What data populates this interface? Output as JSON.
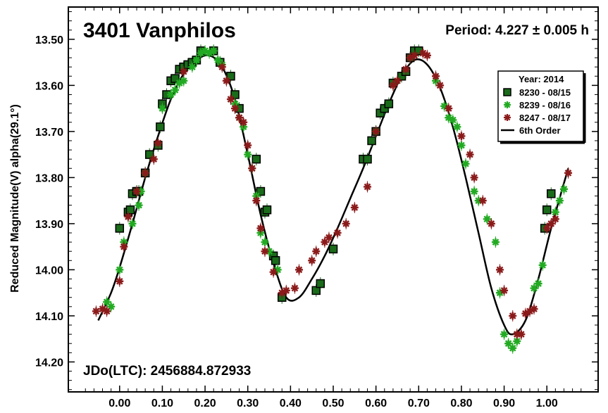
{
  "chart_data": {
    "type": "scatter",
    "title": "3401 Vanphilos",
    "period_text": "Period: 4.227 ± 0.005 h",
    "jdo_text": "JDo(LTC): 2456884.872933",
    "ylabel": "Reduced Magnitude(V) alpha(29.1°)",
    "xlabel": "",
    "xlim": [
      -0.12,
      1.12
    ],
    "ylim": [
      13.43,
      14.265
    ],
    "y_inverted": true,
    "x_ticks": [
      0.0,
      0.1,
      0.2,
      0.3,
      0.4,
      0.5,
      0.6,
      0.7,
      0.8,
      0.9,
      1.0
    ],
    "x_tick_labels": [
      "0.00",
      "0.10",
      "0.20",
      "0.30",
      "0.40",
      "0.50",
      "0.60",
      "0.70",
      "0.80",
      "0.90",
      "1.00"
    ],
    "y_ticks": [
      13.5,
      13.6,
      13.7,
      13.8,
      13.9,
      14.0,
      14.1,
      14.2
    ],
    "y_tick_labels": [
      "13.50",
      "13.60",
      "13.70",
      "13.80",
      "13.90",
      "14.00",
      "14.10",
      "14.20"
    ],
    "grid": false,
    "legend": {
      "placement": "top-right",
      "title": "Year: 2014",
      "entries": [
        {
          "label": "8230 - 08/15",
          "marker": "square",
          "color": "#1a6b1a"
        },
        {
          "label": "8239 - 08/16",
          "marker": "star",
          "color": "#22aa22"
        },
        {
          "label": "8247 - 08/17",
          "marker": "star",
          "color": "#8b1a1a"
        },
        {
          "label": "6th Order",
          "marker": "line",
          "color": "#000000"
        }
      ]
    },
    "series": [
      {
        "name": "8230 - 08/15",
        "marker": "square",
        "color": "#1a6b1a",
        "x": [
          0.0,
          0.02,
          0.025,
          0.03,
          0.04,
          0.045,
          0.06,
          0.07,
          0.09,
          0.095,
          0.1,
          0.11,
          0.12,
          0.13,
          0.14,
          0.15,
          0.16,
          0.17,
          0.18,
          0.19,
          0.22,
          0.235,
          0.26,
          0.27,
          0.28,
          0.32,
          0.33,
          0.34,
          0.345,
          0.36,
          0.365,
          0.38,
          0.46,
          0.47,
          0.5,
          0.57,
          0.58,
          0.59,
          0.6,
          0.61,
          0.62,
          0.63,
          0.64,
          0.66,
          0.67,
          0.68,
          0.69,
          0.7,
          0.995,
          1.0,
          1.01
        ],
        "y": [
          13.91,
          13.875,
          13.87,
          13.835,
          13.83,
          13.83,
          13.79,
          13.75,
          13.73,
          13.69,
          13.64,
          13.62,
          13.59,
          13.585,
          13.565,
          13.56,
          13.555,
          13.55,
          13.545,
          13.525,
          13.525,
          13.55,
          13.58,
          13.62,
          13.65,
          13.76,
          13.83,
          13.875,
          13.87,
          13.97,
          13.98,
          14.06,
          14.045,
          14.03,
          13.955,
          13.76,
          13.76,
          13.72,
          13.7,
          13.66,
          13.65,
          13.64,
          13.595,
          13.58,
          13.57,
          13.54,
          13.525,
          13.525,
          13.91,
          13.87,
          13.835
        ]
      },
      {
        "name": "8239 - 08/16",
        "marker": "star",
        "color": "#22aa22",
        "x": [
          -0.03,
          -0.02,
          0.0,
          0.01,
          0.03,
          0.045,
          0.05,
          0.1,
          0.12,
          0.13,
          0.14,
          0.15,
          0.17,
          0.18,
          0.19,
          0.2,
          0.21,
          0.22,
          0.23,
          0.24,
          0.27,
          0.28,
          0.29,
          0.3,
          0.31,
          0.32,
          0.33,
          0.34,
          0.35,
          0.37,
          0.74,
          0.76,
          0.77,
          0.78,
          0.79,
          0.8,
          0.81,
          0.83,
          0.84,
          0.86,
          0.88,
          0.89,
          0.9,
          0.91,
          0.92,
          0.93,
          0.97,
          0.98,
          0.99,
          1.02,
          1.03,
          1.04
        ],
        "y": [
          14.07,
          14.08,
          14.0,
          13.94,
          13.9,
          13.86,
          13.83,
          13.65,
          13.62,
          13.61,
          13.595,
          13.59,
          13.56,
          13.545,
          13.53,
          13.525,
          13.53,
          13.525,
          13.545,
          13.555,
          13.64,
          13.67,
          13.69,
          13.75,
          13.78,
          13.84,
          13.92,
          13.94,
          13.96,
          14.0,
          13.59,
          13.645,
          13.67,
          13.675,
          13.69,
          13.73,
          13.77,
          13.83,
          13.85,
          13.89,
          13.94,
          14.05,
          14.14,
          14.16,
          14.17,
          14.155,
          14.04,
          14.03,
          13.99,
          13.875,
          13.85,
          13.825
        ]
      },
      {
        "name": "8247 - 08/17",
        "marker": "star",
        "color": "#8b1a1a",
        "x": [
          -0.055,
          -0.04,
          -0.03,
          0.0,
          0.01,
          0.02,
          0.04,
          0.06,
          0.08,
          0.09,
          0.15,
          0.24,
          0.25,
          0.26,
          0.27,
          0.28,
          0.29,
          0.3,
          0.31,
          0.32,
          0.33,
          0.34,
          0.36,
          0.38,
          0.39,
          0.41,
          0.42,
          0.45,
          0.46,
          0.48,
          0.49,
          0.51,
          0.53,
          0.55,
          0.58,
          0.6,
          0.64,
          0.65,
          0.67,
          0.68,
          0.69,
          0.71,
          0.72,
          0.74,
          0.75,
          0.77,
          0.8,
          0.82,
          0.83,
          0.85,
          0.87,
          0.89,
          0.9,
          0.92,
          0.93,
          0.94,
          0.95,
          0.96,
          0.97,
          1.0,
          1.01,
          1.02,
          1.05
        ],
        "y": [
          14.09,
          14.085,
          14.09,
          14.025,
          13.95,
          13.885,
          13.83,
          13.79,
          13.76,
          13.725,
          13.57,
          13.56,
          13.59,
          13.63,
          13.65,
          13.67,
          13.68,
          13.73,
          13.78,
          13.85,
          13.91,
          13.96,
          14.005,
          14.05,
          14.045,
          14.04,
          14.0,
          13.98,
          13.96,
          13.94,
          13.93,
          13.92,
          13.9,
          13.865,
          13.82,
          13.7,
          13.6,
          13.59,
          13.565,
          13.54,
          13.535,
          13.53,
          13.535,
          13.58,
          13.6,
          13.65,
          13.71,
          13.75,
          13.8,
          13.85,
          13.9,
          14.0,
          14.045,
          14.1,
          14.14,
          14.14,
          14.095,
          14.09,
          14.085,
          13.91,
          13.9,
          13.89,
          13.79
        ]
      }
    ],
    "fit": {
      "name": "6th Order",
      "color": "#000000",
      "x": [
        -0.05,
        -0.02,
        0.0,
        0.03,
        0.06,
        0.09,
        0.12,
        0.15,
        0.18,
        0.21,
        0.24,
        0.27,
        0.3,
        0.33,
        0.36,
        0.39,
        0.42,
        0.45,
        0.48,
        0.51,
        0.54,
        0.57,
        0.6,
        0.63,
        0.66,
        0.69,
        0.72,
        0.75,
        0.78,
        0.81,
        0.84,
        0.87,
        0.9,
        0.92,
        0.95,
        0.98,
        1.01,
        1.05
      ],
      "y": [
        14.11,
        14.05,
        13.995,
        13.9,
        13.8,
        13.71,
        13.63,
        13.575,
        13.545,
        13.535,
        13.56,
        13.63,
        13.75,
        13.88,
        13.985,
        14.06,
        14.06,
        14.02,
        13.97,
        13.91,
        13.845,
        13.78,
        13.71,
        13.64,
        13.58,
        13.545,
        13.555,
        13.605,
        13.69,
        13.8,
        13.92,
        14.04,
        14.12,
        14.14,
        14.11,
        14.02,
        13.91,
        13.78
      ]
    }
  }
}
